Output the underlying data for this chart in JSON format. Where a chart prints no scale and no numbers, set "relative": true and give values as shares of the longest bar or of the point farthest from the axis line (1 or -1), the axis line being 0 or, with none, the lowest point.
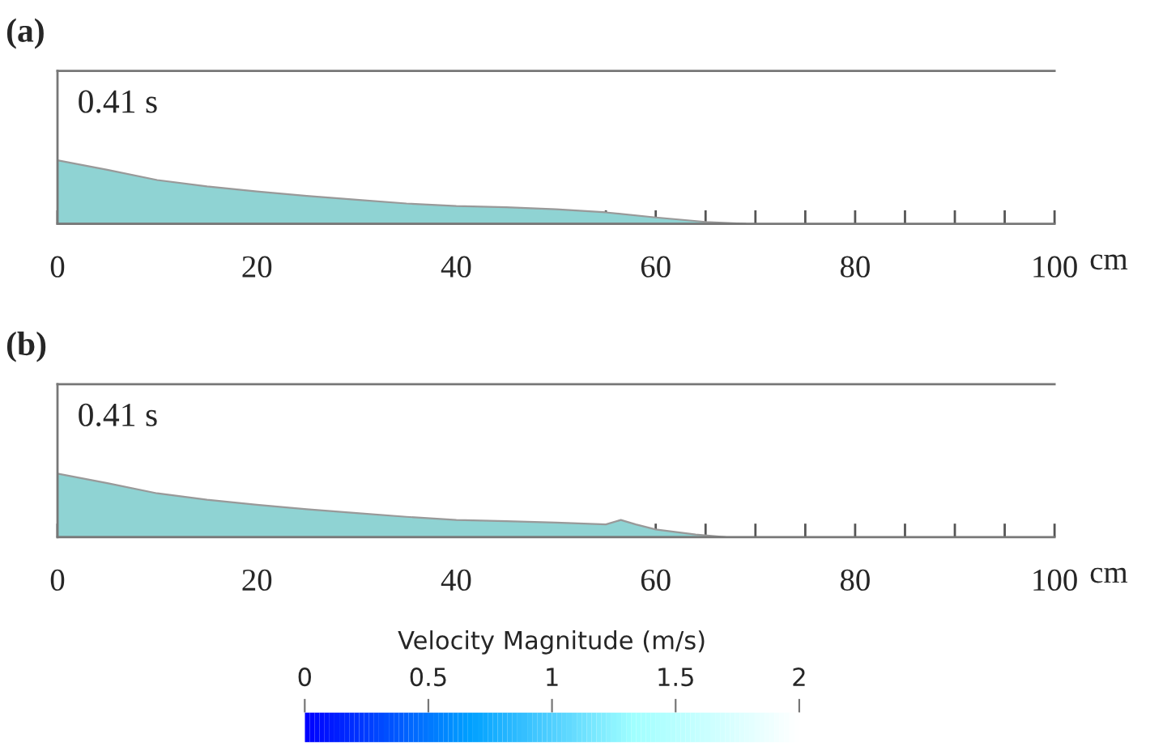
{
  "chart_data": [
    {
      "type": "area",
      "title": "(a)",
      "xlabel": "cm",
      "relative": true,
      "annotations": [
        "0.41 s"
      ],
      "x": [
        0,
        5,
        10,
        15,
        20,
        25,
        30,
        35,
        40,
        45,
        50,
        55,
        60,
        65,
        69
      ],
      "series": [
        {
          "color": "#8fd3d3",
          "values": [
            1,
            0.85,
            0.69,
            0.59,
            0.51,
            0.44,
            0.38,
            0.32,
            0.28,
            0.26,
            0.23,
            0.18,
            0.1,
            0.03,
            0
          ]
        }
      ],
      "xlim": [
        0,
        100
      ],
      "xticks": [
        0,
        {
          "value": 5,
          "label": null
        },
        {
          "value": 10,
          "label": null
        },
        {
          "value": 15,
          "label": null
        },
        20,
        {
          "value": 25,
          "label": null
        },
        {
          "value": 30,
          "label": null
        },
        {
          "value": 35,
          "label": null
        },
        40,
        {
          "value": 45,
          "label": null
        },
        {
          "value": 50,
          "label": null
        },
        {
          "value": 55,
          "label": null
        },
        60,
        {
          "value": 65,
          "label": null
        },
        {
          "value": 70,
          "label": null
        },
        {
          "value": 75,
          "label": null
        },
        80,
        {
          "value": 85,
          "label": null
        },
        {
          "value": 90,
          "label": null
        },
        {
          "value": 95,
          "label": null
        },
        100
      ]
    },
    {
      "type": "area",
      "title": "(b)",
      "xlabel": "cm",
      "relative": true,
      "annotations": [
        "0.41 s"
      ],
      "clabel": "Velocity Magnitude (m/s)",
      "clim": [
        0,
        2
      ],
      "cticks": [
        0,
        0.5,
        1,
        1.5,
        2
      ],
      "x": [
        0,
        5,
        10,
        15,
        20,
        25,
        30,
        35,
        40,
        45,
        50,
        55,
        56.5,
        58,
        60,
        64,
        67
      ],
      "series": [
        {
          "color": "#8fd3d3",
          "values": [
            1,
            0.85,
            0.69,
            0.59,
            0.51,
            0.44,
            0.38,
            0.32,
            0.27,
            0.25,
            0.23,
            0.2,
            0.27,
            0.2,
            0.12,
            0.04,
            0
          ]
        }
      ],
      "xlim": [
        0,
        100
      ],
      "xticks": [
        0,
        {
          "value": 5,
          "label": null
        },
        {
          "value": 10,
          "label": null
        },
        {
          "value": 15,
          "label": null
        },
        20,
        {
          "value": 25,
          "label": null
        },
        {
          "value": 30,
          "label": null
        },
        {
          "value": 35,
          "label": null
        },
        40,
        {
          "value": 45,
          "label": null
        },
        {
          "value": 50,
          "label": null
        },
        {
          "value": 55,
          "label": null
        },
        60,
        {
          "value": 65,
          "label": null
        },
        {
          "value": 70,
          "label": null
        },
        {
          "value": 75,
          "label": null
        },
        80,
        {
          "value": 85,
          "label": null
        },
        {
          "value": 90,
          "label": null
        },
        {
          "value": 95,
          "label": null
        },
        100
      ]
    }
  ]
}
